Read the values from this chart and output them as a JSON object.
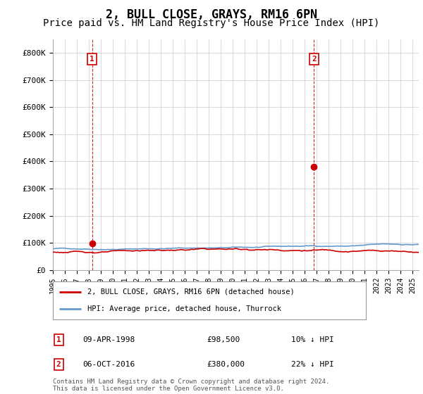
{
  "title": "2, BULL CLOSE, GRAYS, RM16 6PN",
  "subtitle": "Price paid vs. HM Land Registry's House Price Index (HPI)",
  "title_fontsize": 12,
  "subtitle_fontsize": 10,
  "ylabel_ticks": [
    "£0",
    "£100K",
    "£200K",
    "£300K",
    "£400K",
    "£500K",
    "£600K",
    "£700K",
    "£800K"
  ],
  "ytick_values": [
    0,
    100000,
    200000,
    300000,
    400000,
    500000,
    600000,
    700000,
    800000
  ],
  "ylim": [
    0,
    850000
  ],
  "xlim_start": 1995.0,
  "xlim_end": 2025.5,
  "hpi_color": "#6699cc",
  "price_color": "#cc0000",
  "marker1_date": 1998.27,
  "marker1_price": 98500,
  "marker2_date": 2016.76,
  "marker2_price": 380000,
  "legend_label_red": "2, BULL CLOSE, GRAYS, RM16 6PN (detached house)",
  "legend_label_blue": "HPI: Average price, detached house, Thurrock",
  "table_row1": [
    "1",
    "09-APR-1998",
    "£98,500",
    "10% ↓ HPI"
  ],
  "table_row2": [
    "2",
    "06-OCT-2016",
    "£380,000",
    "22% ↓ HPI"
  ],
  "footer": "Contains HM Land Registry data © Crown copyright and database right 2024.\nThis data is licensed under the Open Government Licence v3.0.",
  "background_color": "#ffffff",
  "grid_color": "#cccccc"
}
